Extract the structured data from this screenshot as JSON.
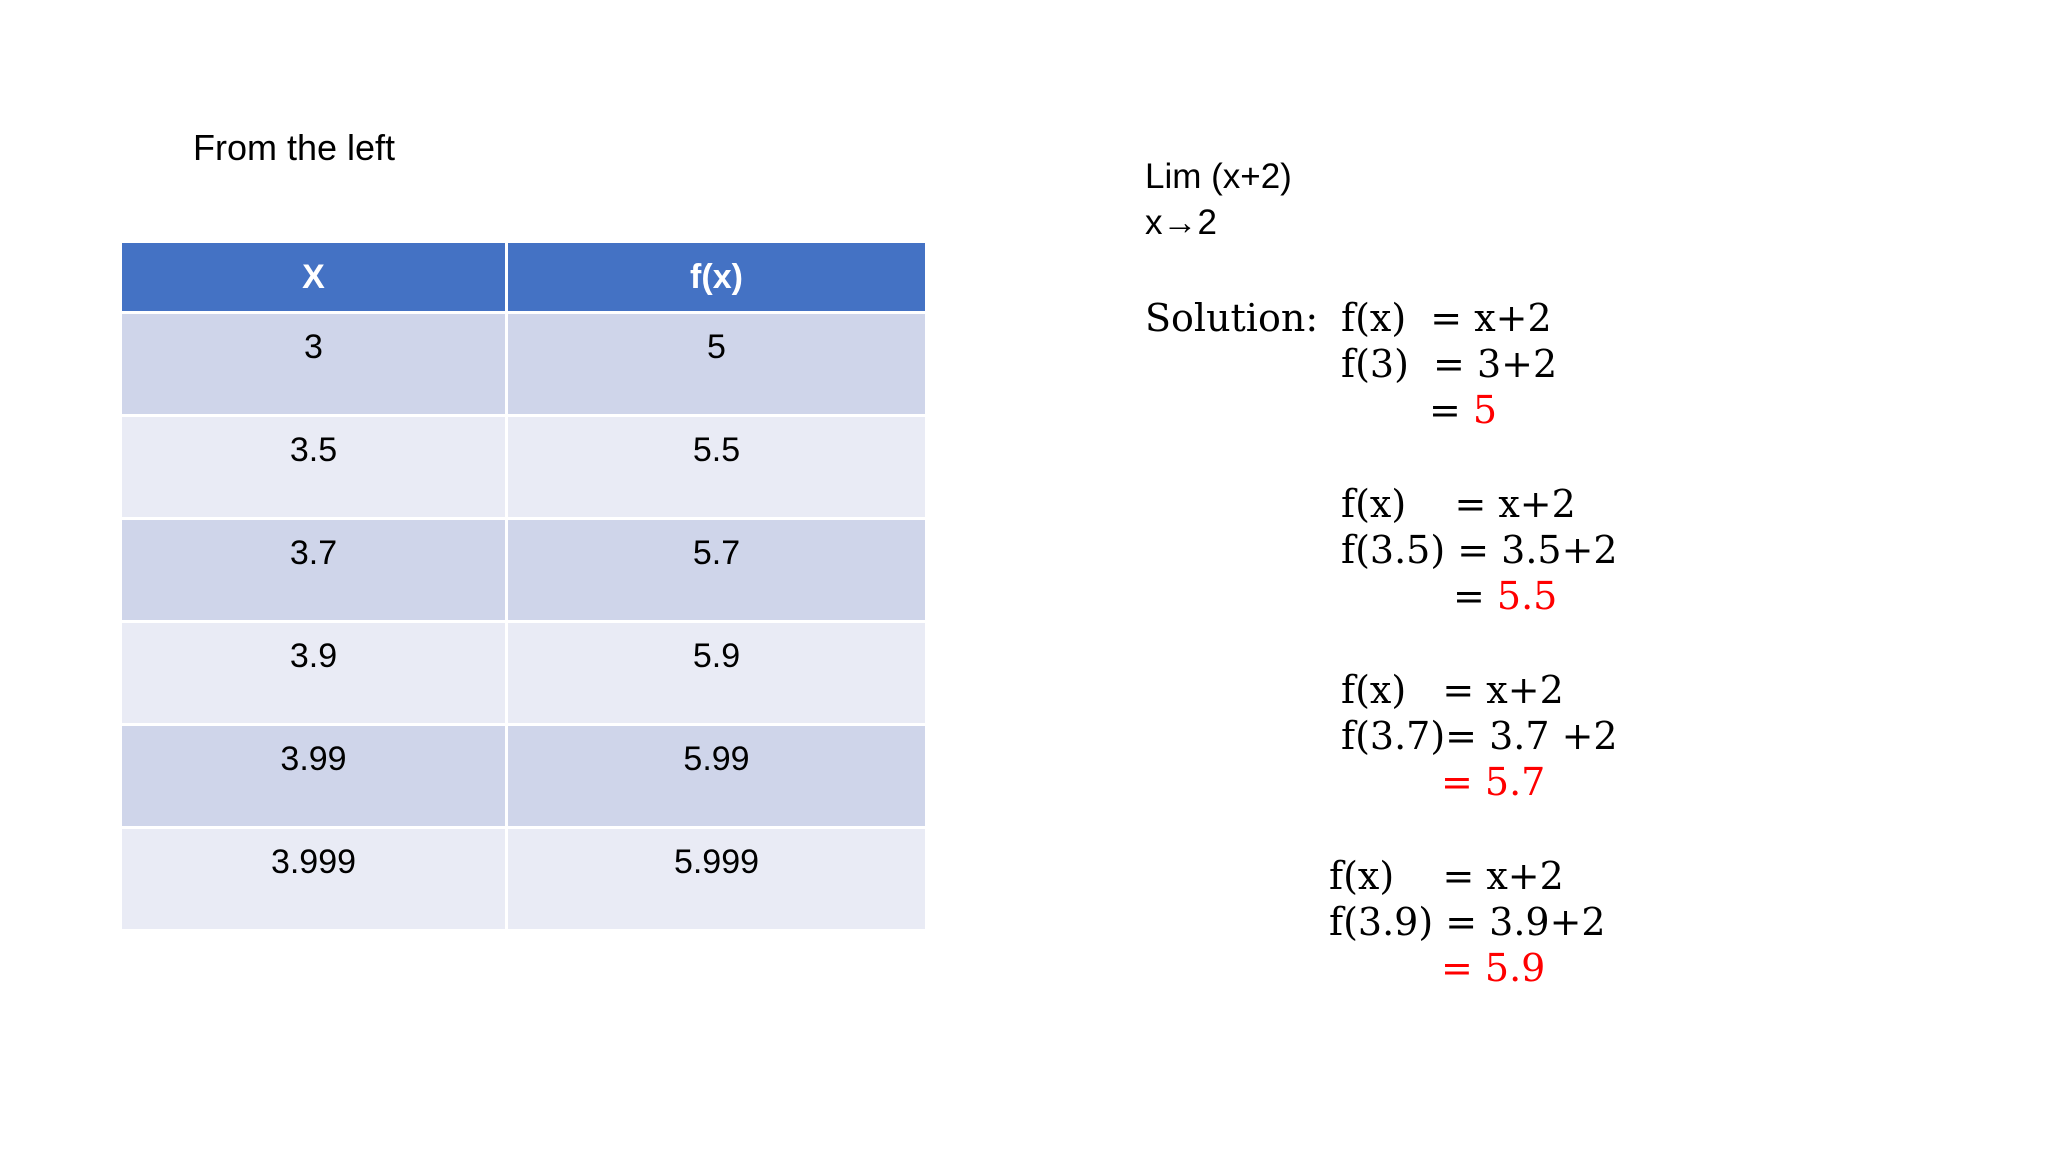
{
  "caption": "From the left",
  "table": {
    "headers": [
      "X",
      "f(x)"
    ],
    "rows": [
      [
        "3",
        "5"
      ],
      [
        "3.5",
        "5.5"
      ],
      [
        "3.7",
        "5.7"
      ],
      [
        "3.9",
        "5.9"
      ],
      [
        "3.99",
        "5.99"
      ],
      [
        "3.999",
        "5.999"
      ]
    ]
  },
  "limit": {
    "line1": "Lim (x+2)",
    "line2": "x→2"
  },
  "solution": {
    "label": "Solution:",
    "block1": {
      "line1": "f(x)  = x+2",
      "line2": "f(3)  = 3+2",
      "eq": "= ",
      "result": "5"
    },
    "block2": {
      "line1": "f(x)    = x+2",
      "line2": "f(3.5) = 3.5+2",
      "eq": "= ",
      "result": "5.5"
    },
    "block3": {
      "line1": "f(x)   = x+2",
      "line2": "f(3.7)= 3.7 +2",
      "result": "= 5.7"
    },
    "block4": {
      "line1": "f(x)    = x+2",
      "line2": "f(3.9) = 3.9+2",
      "result": "= 5.9"
    }
  }
}
